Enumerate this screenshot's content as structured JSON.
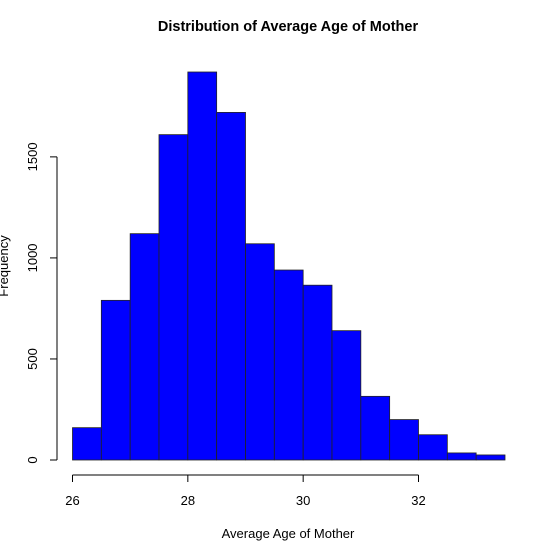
{
  "chart_data": {
    "type": "bar",
    "title": "Distribution of Average Age of Mother",
    "xlabel": "Average Age of Mother",
    "ylabel": "Frequency",
    "bin_width": 0.5,
    "bins": [
      {
        "start": 26.0,
        "end": 26.5,
        "count": 160
      },
      {
        "start": 26.5,
        "end": 27.0,
        "count": 790
      },
      {
        "start": 27.0,
        "end": 27.5,
        "count": 1120
      },
      {
        "start": 27.5,
        "end": 28.0,
        "count": 1610
      },
      {
        "start": 28.0,
        "end": 28.5,
        "count": 1920
      },
      {
        "start": 28.5,
        "end": 29.0,
        "count": 1720
      },
      {
        "start": 29.0,
        "end": 29.5,
        "count": 1070
      },
      {
        "start": 29.5,
        "end": 30.0,
        "count": 940
      },
      {
        "start": 30.0,
        "end": 30.5,
        "count": 865
      },
      {
        "start": 30.5,
        "end": 31.0,
        "count": 640
      },
      {
        "start": 31.0,
        "end": 31.5,
        "count": 315
      },
      {
        "start": 31.5,
        "end": 32.0,
        "count": 200
      },
      {
        "start": 32.0,
        "end": 32.5,
        "count": 125
      },
      {
        "start": 32.5,
        "end": 33.0,
        "count": 35
      },
      {
        "start": 33.0,
        "end": 33.5,
        "count": 25
      }
    ],
    "x_ticks": [
      26,
      28,
      30,
      32
    ],
    "y_ticks": [
      0,
      500,
      1000,
      1500
    ],
    "xlim": [
      26,
      33.5
    ],
    "ylim": [
      0,
      1920
    ],
    "bar_color": "#0000ff",
    "border_color": "#222222",
    "grid": false,
    "legend": "none"
  }
}
